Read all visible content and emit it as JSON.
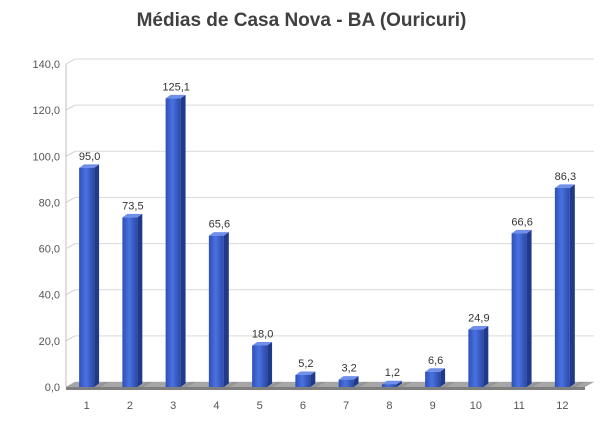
{
  "chart_data": {
    "type": "bar",
    "title": "Médias de Casa Nova - BA (Ouricuri)",
    "xlabel": "",
    "ylabel": "",
    "categories": [
      "1",
      "2",
      "3",
      "4",
      "5",
      "6",
      "7",
      "8",
      "9",
      "10",
      "11",
      "12"
    ],
    "values": [
      95.0,
      73.5,
      125.1,
      65.6,
      18.0,
      5.2,
      3.2,
      1.2,
      6.6,
      24.9,
      66.6,
      86.3
    ],
    "value_labels": [
      "95,0",
      "73,5",
      "125,1",
      "65,6",
      "18,0",
      "5,2",
      "3,2",
      "1,2",
      "6,6",
      "24,9",
      "66,6",
      "86,3"
    ],
    "ylim": [
      0,
      140
    ],
    "yticks": [
      0,
      20,
      40,
      60,
      80,
      100,
      120,
      140
    ],
    "ytick_labels": [
      "0,0",
      "20,0",
      "40,0",
      "60,0",
      "80,0",
      "100,0",
      "120,0",
      "140,0"
    ],
    "grid": true,
    "legend": "none",
    "bar_color": "#3a5fcd"
  }
}
